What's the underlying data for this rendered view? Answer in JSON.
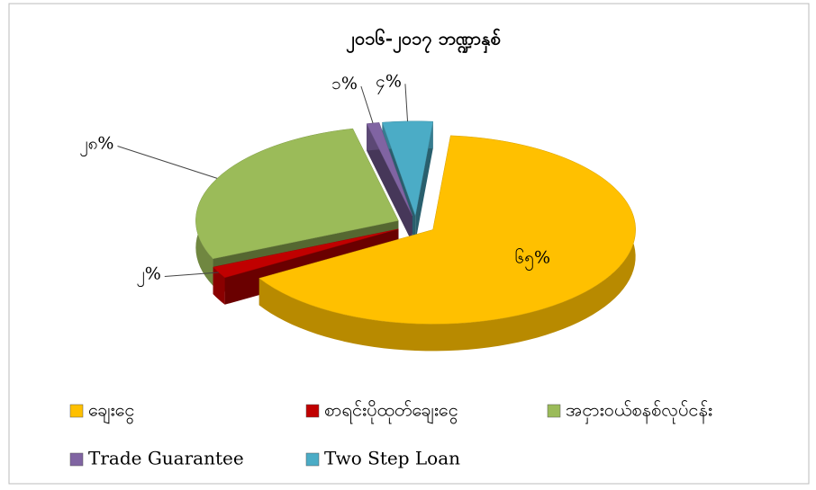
{
  "chart_data": {
    "type": "pie3d",
    "title": "၂၀၁၆-၂၀၁၇ ဘဏ္ဍာနှစ်",
    "categories": [
      "ချေးငွေ",
      "စာရင်းပိုထုတ်ချေးငွေ",
      "အငှားဝယ်စနစ်လုပ်ငန်း",
      "Trade Guarantee",
      "Two Step Loan"
    ],
    "values": [
      65,
      2,
      28,
      1,
      4
    ],
    "value_labels": [
      "၆၅%",
      "၂%",
      "၂၈%",
      "၁%",
      "၄%"
    ],
    "colors": [
      "#ffc000",
      "#c00000",
      "#9bbb59",
      "#8064a2",
      "#4bacc6"
    ],
    "legend": "bottom"
  }
}
